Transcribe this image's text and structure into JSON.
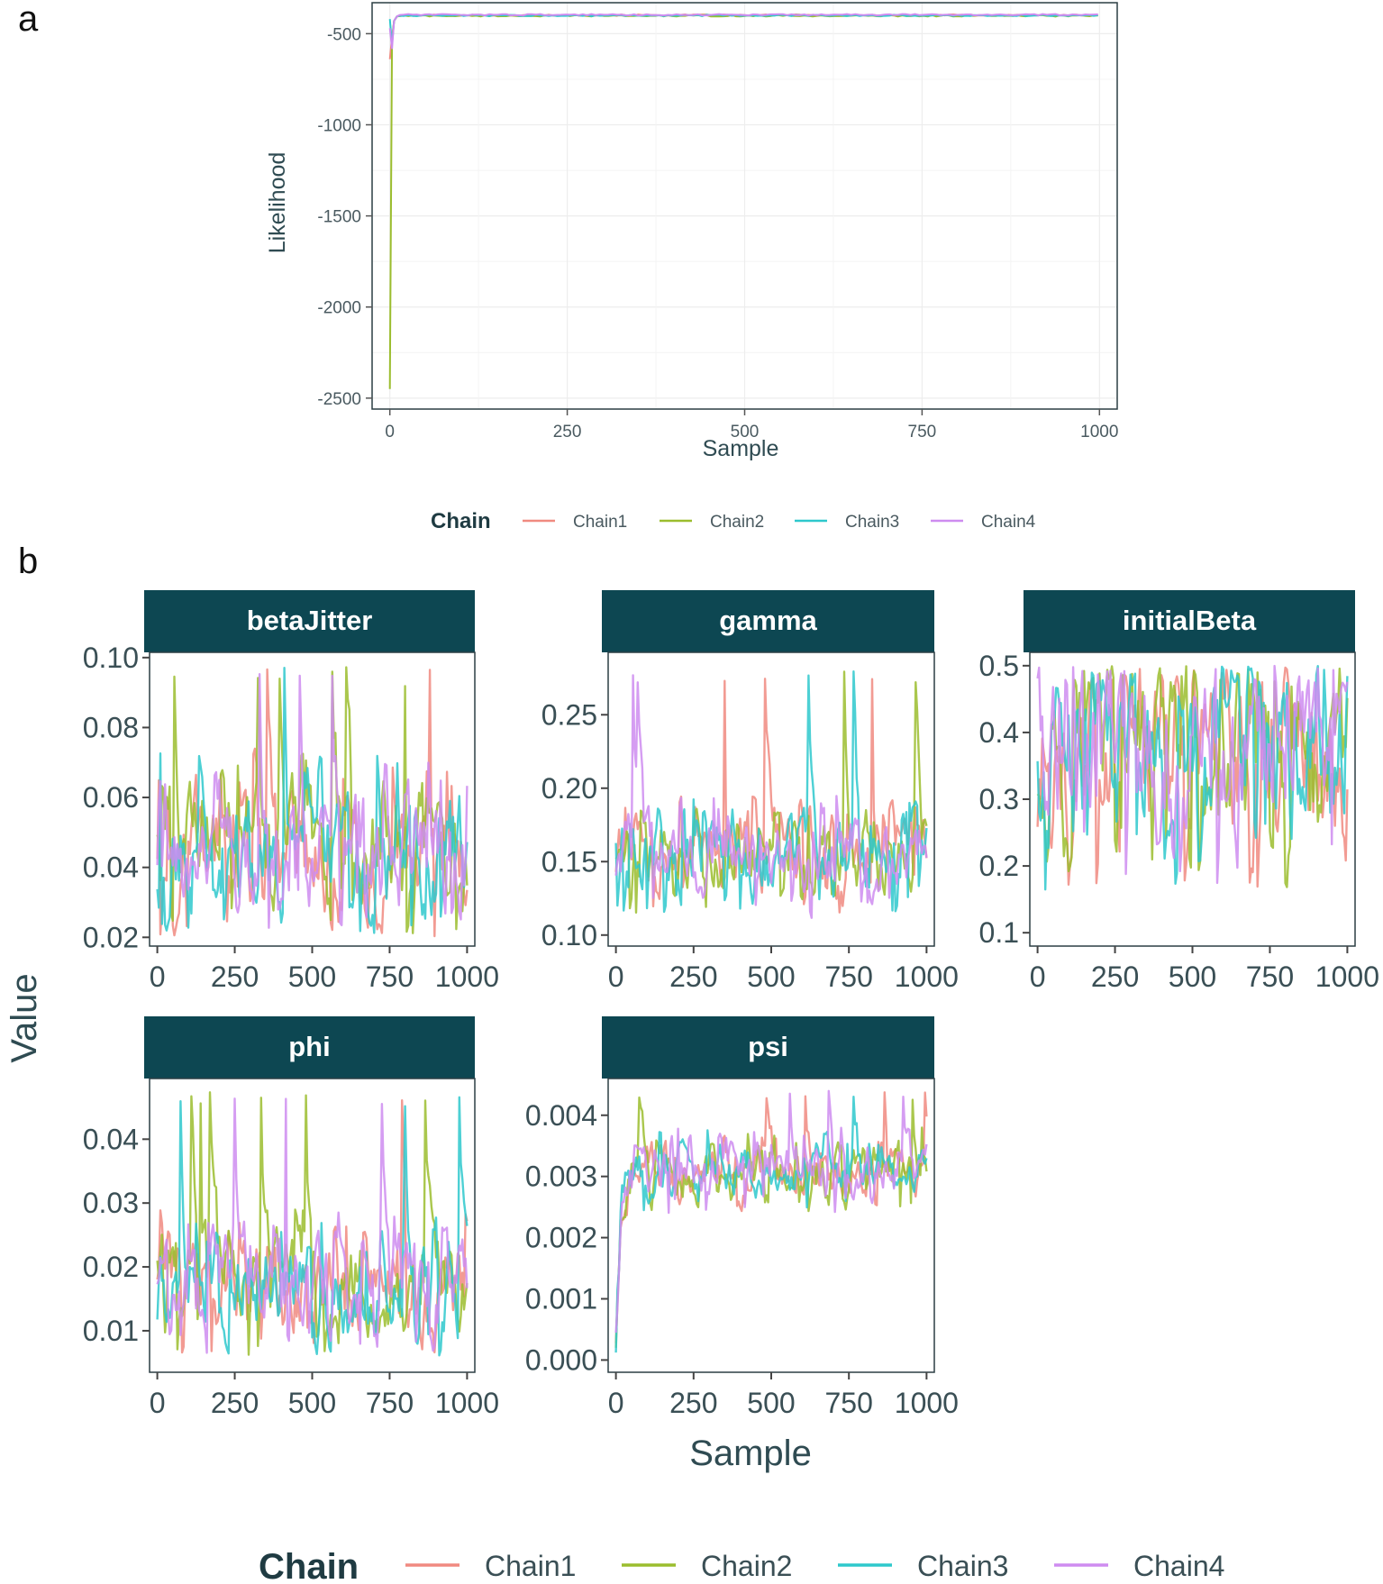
{
  "panel_labels": [
    "a",
    "b"
  ],
  "colors": {
    "Chain1": "#F08A80",
    "Chain2": "#9BBD2E",
    "Chain3": "#2EC8CC",
    "Chain4": "#CE8CF0",
    "strip_bg": "#0D4752",
    "panel_border": "#2c3e44",
    "grid": "#ededed"
  },
  "chart_data": [
    {
      "panel": "a",
      "type": "line",
      "xlabel": "Sample",
      "ylabel": "Likelihood",
      "xlim": [
        -25,
        1025
      ],
      "ylim": [
        -2560,
        -330
      ],
      "xticks": [
        0,
        250,
        500,
        750,
        1000
      ],
      "yticks": [
        -500,
        -1000,
        -1500,
        -2000,
        -2500
      ],
      "legend_title": "Chain",
      "legend_position": "bottom",
      "series": [
        {
          "name": "Chain1",
          "burnin_start": -640,
          "steady": -398,
          "noise": 4
        },
        {
          "name": "Chain2",
          "burnin_start": -2450,
          "steady": -402,
          "noise": 4
        },
        {
          "name": "Chain3",
          "burnin_start": -420,
          "steady": -400,
          "noise": 4
        },
        {
          "name": "Chain4",
          "burnin_start": -470,
          "steady": -396,
          "noise": 4
        }
      ]
    },
    {
      "panel": "b",
      "type": "line",
      "xlabel": "Sample",
      "ylabel": "Value",
      "legend_title": "Chain",
      "legend_position": "bottom",
      "series_names": [
        "Chain1",
        "Chain2",
        "Chain3",
        "Chain4"
      ],
      "facets": [
        {
          "title": "betaJitter",
          "xlim": [
            -25,
            1025
          ],
          "ylim": [
            0.0175,
            0.1015
          ],
          "xticks": [
            0,
            250,
            500,
            750,
            1000
          ],
          "yticks": [
            0.1,
            0.08,
            0.06,
            0.04,
            0.02
          ],
          "ytick_labels": [
            "0.10",
            "0.08",
            "0.06",
            "0.04",
            "0.02"
          ],
          "center": 0.045,
          "spread": 0.014,
          "min": 0.02,
          "max": 0.098
        },
        {
          "title": "gamma",
          "xlim": [
            -25,
            1025
          ],
          "ylim": [
            0.0925,
            0.2925
          ],
          "xticks": [
            0,
            250,
            500,
            750,
            1000
          ],
          "yticks": [
            0.25,
            0.2,
            0.15,
            0.1
          ],
          "ytick_labels": [
            "0.25",
            "0.20",
            "0.15",
            "0.10"
          ],
          "center": 0.155,
          "spread": 0.02,
          "min": 0.095,
          "max": 0.28
        },
        {
          "title": "initialBeta",
          "xlim": [
            -25,
            1025
          ],
          "ylim": [
            0.08,
            0.52
          ],
          "xticks": [
            0,
            250,
            500,
            750,
            1000
          ],
          "yticks": [
            0.5,
            0.4,
            0.3,
            0.2,
            0.1
          ],
          "ytick_labels": [
            "0.5",
            "0.4",
            "0.3",
            "0.2",
            "0.1"
          ],
          "center": 0.36,
          "spread": 0.1,
          "min": 0.1,
          "max": 0.5
        },
        {
          "title": "phi",
          "xlim": [
            -25,
            1025
          ],
          "ylim": [
            0.0035,
            0.0495
          ],
          "xticks": [
            0,
            250,
            500,
            750,
            1000
          ],
          "yticks": [
            0.04,
            0.03,
            0.02,
            0.01
          ],
          "ytick_labels": [
            "0.04",
            "0.03",
            "0.02",
            "0.01"
          ],
          "center": 0.017,
          "spread": 0.006,
          "min": 0.006,
          "max": 0.048
        },
        {
          "title": "psi",
          "xlim": [
            -25,
            1025
          ],
          "ylim": [
            -0.0002,
            0.0046
          ],
          "xticks": [
            0,
            250,
            500,
            750,
            1000
          ],
          "yticks": [
            0.004,
            0.003,
            0.002,
            0.001,
            0.0
          ],
          "ytick_labels": [
            "0.004",
            "0.003",
            "0.002",
            "0.001",
            "0.000"
          ],
          "center": 0.0031,
          "spread": 0.00035,
          "min": 0.0001,
          "max": 0.0044
        }
      ]
    }
  ]
}
